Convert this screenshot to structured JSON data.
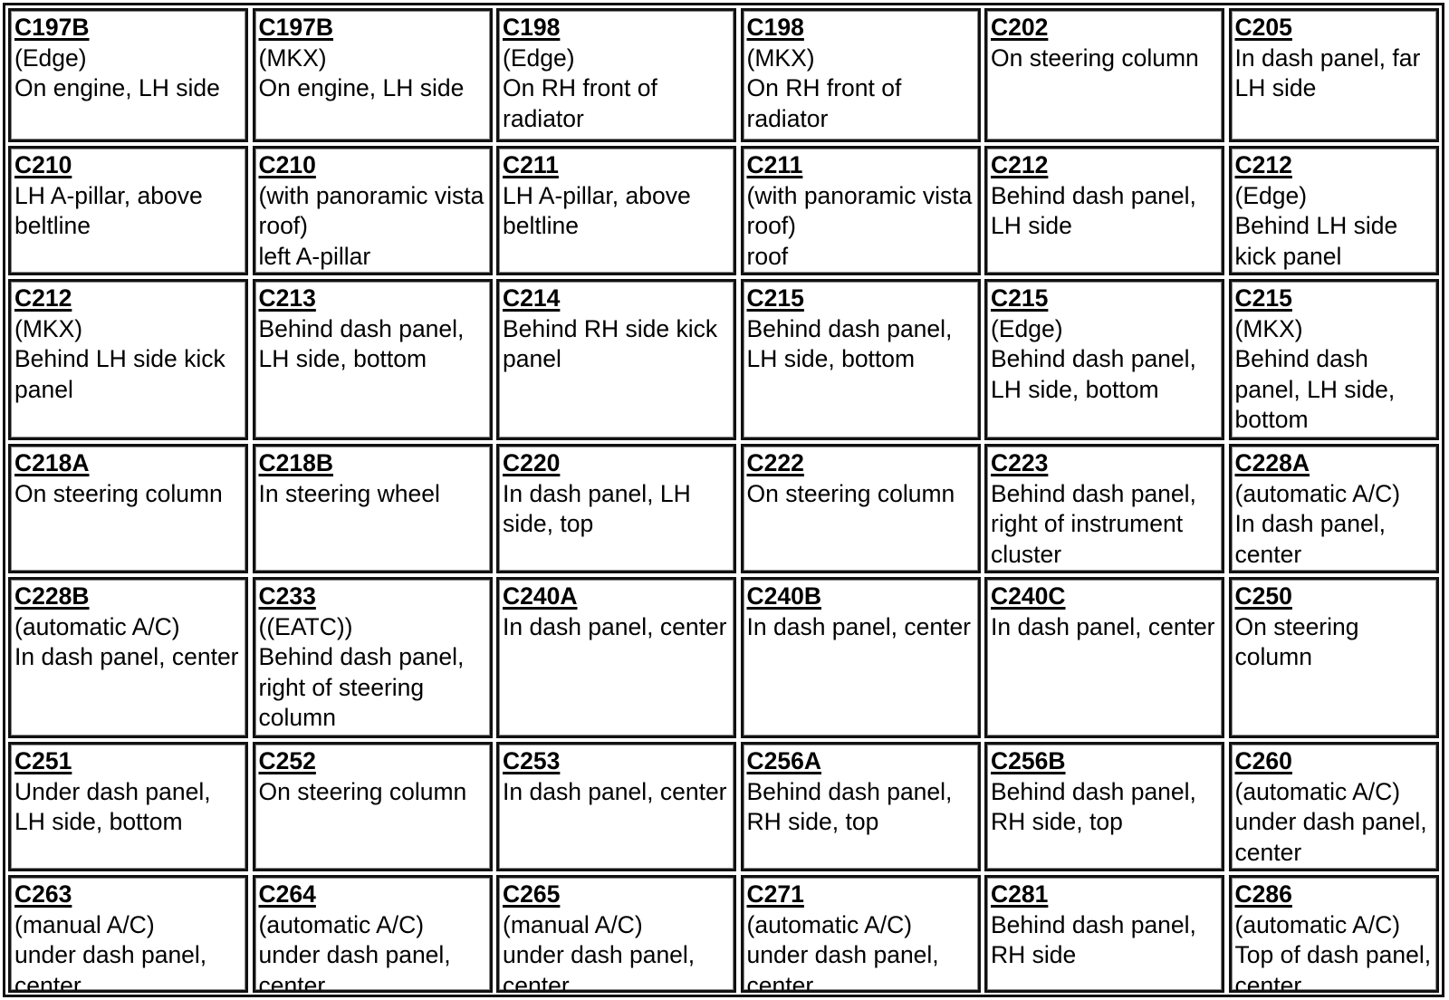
{
  "cells": [
    {
      "title": "C197B",
      "lines": [
        "(Edge)",
        "On engine, LH side"
      ]
    },
    {
      "title": "C197B",
      "lines": [
        "(MKX)",
        "On engine, LH side"
      ]
    },
    {
      "title": "C198",
      "lines": [
        "(Edge)",
        "On RH front of radiator"
      ]
    },
    {
      "title": "C198",
      "lines": [
        "(MKX)",
        "On RH front of radiator"
      ]
    },
    {
      "title": "C202",
      "lines": [
        "On steering column"
      ]
    },
    {
      "title": "C205",
      "lines": [
        "In dash panel, far LH side"
      ]
    },
    {
      "title": "C210",
      "lines": [
        "LH A-pillar, above beltline"
      ]
    },
    {
      "title": "C210",
      "lines": [
        "(with panoramic vista roof)",
        "left A-pillar"
      ]
    },
    {
      "title": "C211",
      "lines": [
        "LH A-pillar, above beltline"
      ]
    },
    {
      "title": "C211",
      "lines": [
        "(with panoramic vista roof)",
        "roof"
      ]
    },
    {
      "title": "C212",
      "lines": [
        "Behind dash panel, LH side"
      ]
    },
    {
      "title": "C212",
      "lines": [
        "(Edge)",
        "Behind LH side kick panel"
      ]
    },
    {
      "title": "C212",
      "lines": [
        "(MKX)",
        "Behind LH side kick panel"
      ]
    },
    {
      "title": "C213",
      "lines": [
        "Behind dash panel, LH side, bottom"
      ]
    },
    {
      "title": "C214",
      "lines": [
        "Behind RH side kick panel"
      ]
    },
    {
      "title": "C215",
      "lines": [
        "Behind dash panel, LH side, bottom"
      ]
    },
    {
      "title": "C215",
      "lines": [
        "(Edge)",
        "Behind dash panel, LH side, bottom"
      ]
    },
    {
      "title": "C215",
      "lines": [
        "(MKX)",
        "Behind dash panel, LH side, bottom"
      ]
    },
    {
      "title": "C218A",
      "lines": [
        "On steering column"
      ]
    },
    {
      "title": "C218B",
      "lines": [
        "In steering wheel"
      ]
    },
    {
      "title": "C220",
      "lines": [
        "In dash panel, LH side, top"
      ]
    },
    {
      "title": "C222",
      "lines": [
        "On steering column"
      ]
    },
    {
      "title": "C223",
      "lines": [
        "Behind dash panel, right of instrument cluster"
      ]
    },
    {
      "title": "C228A",
      "lines": [
        "(automatic A/C)",
        "In dash panel, center"
      ]
    },
    {
      "title": "C228B",
      "lines": [
        "(automatic A/C)",
        "In dash panel, center"
      ]
    },
    {
      "title": "C233",
      "lines": [
        "((EATC))",
        "Behind dash panel, right of steering column"
      ]
    },
    {
      "title": "C240A",
      "lines": [
        "In dash panel, center"
      ]
    },
    {
      "title": "C240B",
      "lines": [
        "In dash panel, center"
      ]
    },
    {
      "title": "C240C",
      "lines": [
        "In dash panel, center"
      ]
    },
    {
      "title": "C250",
      "lines": [
        "On steering column"
      ]
    },
    {
      "title": "C251",
      "lines": [
        "Under dash panel, LH side, bottom"
      ]
    },
    {
      "title": "C252",
      "lines": [
        "On steering column"
      ]
    },
    {
      "title": "C253",
      "lines": [
        "In dash panel, center"
      ]
    },
    {
      "title": "C256A",
      "lines": [
        "Behind dash panel, RH side, top"
      ]
    },
    {
      "title": "C256B",
      "lines": [
        "Behind dash panel, RH side, top"
      ]
    },
    {
      "title": "C260",
      "lines": [
        "(automatic A/C)",
        "under dash panel, center"
      ]
    },
    {
      "title": "C263",
      "lines": [
        "(manual A/C)",
        "under dash panel, center"
      ]
    },
    {
      "title": "C264",
      "lines": [
        "(automatic A/C)",
        "under dash panel, center"
      ]
    },
    {
      "title": "C265",
      "lines": [
        "(manual A/C)",
        "under dash panel, center"
      ]
    },
    {
      "title": "C271",
      "lines": [
        "(automatic A/C)",
        "under dash panel, center"
      ]
    },
    {
      "title": "C281",
      "lines": [
        "Behind dash panel, RH side"
      ]
    },
    {
      "title": "C286",
      "lines": [
        "(automatic A/C)",
        "Top of dash panel, center"
      ]
    }
  ]
}
